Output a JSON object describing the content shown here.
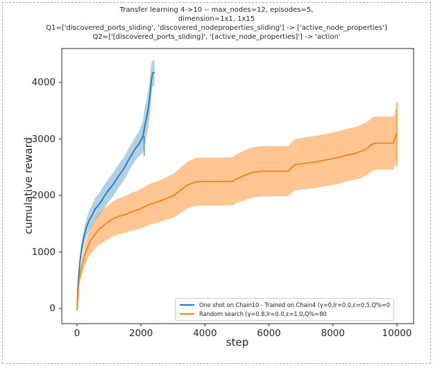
{
  "title": {
    "lines": [
      "Transfer learning 4->10 -- max_nodes=12, episodes=5,",
      "dimension=1x1, 1x15",
      "Q1=['discovered_ports_sliding', 'discovered_nodeproperties_sliding'] -> ['active_node_properties']",
      "Q2=['[discovered_ports_sliding]', '[active_node_properties]'] -> 'action'"
    ]
  },
  "legend": {
    "entries": [
      {
        "label": "One shot on Chain10 - Trained on Chain4 (γ=0,lr=0.0,ε=0.5,Q%=0",
        "color": "#1f77b4"
      },
      {
        "label": "Random search (γ=0.8,lr=0.0,ε=1.0,Q%=80",
        "color": "#ff7f0e"
      }
    ]
  },
  "chart_data": {
    "type": "line",
    "title": "Transfer learning 4->10 -- max_nodes=12, episodes=5, dimension=1x1, 1x15",
    "xlabel": "step",
    "ylabel": "cumulative reward",
    "xlim": [
      -500,
      10500
    ],
    "ylim": [
      -220,
      4600
    ],
    "x_ticks": [
      0,
      2000,
      4000,
      6000,
      8000,
      10000
    ],
    "y_ticks": [
      0,
      1000,
      2000,
      3000,
      4000
    ],
    "grid": false,
    "legend_position": "lower right",
    "series": [
      {
        "name": "One shot on Chain10 - Trained on Chain4",
        "color": "#1f77b4",
        "band_opacity": 0.35,
        "points_format": [
          "step",
          "mean",
          "band_lo",
          "band_hi"
        ],
        "points": [
          [
            0,
            -30,
            -30,
            -30
          ],
          [
            40,
            500,
            430,
            560
          ],
          [
            90,
            820,
            720,
            910
          ],
          [
            130,
            1010,
            890,
            1120
          ],
          [
            175,
            1160,
            1020,
            1290
          ],
          [
            240,
            1320,
            1170,
            1460
          ],
          [
            300,
            1445,
            1285,
            1600
          ],
          [
            390,
            1570,
            1390,
            1745
          ],
          [
            480,
            1655,
            1465,
            1840
          ],
          [
            560,
            1755,
            1555,
            1950
          ],
          [
            650,
            1815,
            1615,
            2010
          ],
          [
            760,
            1900,
            1695,
            2100
          ],
          [
            870,
            2000,
            1790,
            2205
          ],
          [
            980,
            2090,
            1880,
            2295
          ],
          [
            1080,
            2160,
            1950,
            2365
          ],
          [
            1190,
            2250,
            2040,
            2455
          ],
          [
            1300,
            2345,
            2135,
            2550
          ],
          [
            1410,
            2430,
            2225,
            2635
          ],
          [
            1520,
            2530,
            2325,
            2735
          ],
          [
            1620,
            2640,
            2435,
            2845
          ],
          [
            1730,
            2740,
            2535,
            2945
          ],
          [
            1840,
            2840,
            2635,
            3045
          ],
          [
            1950,
            2925,
            2700,
            3150
          ],
          [
            2060,
            3040,
            2760,
            3320
          ],
          [
            2110,
            3210,
            2890,
            3530
          ],
          [
            2170,
            3360,
            3040,
            3680
          ],
          [
            2230,
            3540,
            3220,
            3860
          ],
          [
            2280,
            3790,
            3470,
            4110
          ],
          [
            2320,
            4010,
            3690,
            4330
          ],
          [
            2360,
            4160,
            3930,
            4390
          ],
          [
            2420,
            4185,
            3950,
            4390
          ]
        ]
      },
      {
        "name": "Random search",
        "color": "#ff7f0e",
        "band_opacity": 0.45,
        "points_format": [
          "step",
          "mean",
          "band_lo",
          "band_hi"
        ],
        "points": [
          [
            0,
            -30,
            -30,
            -30
          ],
          [
            65,
            520,
            430,
            610
          ],
          [
            130,
            700,
            560,
            840
          ],
          [
            200,
            850,
            680,
            1020
          ],
          [
            260,
            975,
            780,
            1170
          ],
          [
            350,
            1110,
            890,
            1330
          ],
          [
            430,
            1210,
            970,
            1450
          ],
          [
            540,
            1295,
            1040,
            1550
          ],
          [
            650,
            1385,
            1110,
            1660
          ],
          [
            780,
            1445,
            1160,
            1730
          ],
          [
            910,
            1505,
            1210,
            1800
          ],
          [
            1080,
            1570,
            1260,
            1880
          ],
          [
            1300,
            1630,
            1310,
            1950
          ],
          [
            1520,
            1665,
            1340,
            1990
          ],
          [
            1730,
            1715,
            1380,
            2050
          ],
          [
            1950,
            1755,
            1410,
            2100
          ],
          [
            2160,
            1815,
            1460,
            2170
          ],
          [
            2380,
            1865,
            1500,
            2230
          ],
          [
            2600,
            1900,
            1530,
            2270
          ],
          [
            2810,
            1950,
            1570,
            2330
          ],
          [
            3030,
            2000,
            1610,
            2390
          ],
          [
            3250,
            2100,
            1700,
            2500
          ],
          [
            3460,
            2185,
            1770,
            2600
          ],
          [
            3680,
            2235,
            1810,
            2660
          ],
          [
            3900,
            2245,
            1820,
            2670
          ],
          [
            4400,
            2245,
            1820,
            2670
          ],
          [
            4870,
            2250,
            1825,
            2675
          ],
          [
            4980,
            2295,
            1865,
            2725
          ],
          [
            5200,
            2345,
            1905,
            2785
          ],
          [
            5410,
            2395,
            1950,
            2840
          ],
          [
            5630,
            2420,
            1975,
            2865
          ],
          [
            5840,
            2430,
            1985,
            2875
          ],
          [
            6600,
            2430,
            1985,
            2875
          ],
          [
            6710,
            2495,
            2045,
            2945
          ],
          [
            6820,
            2545,
            2090,
            3000
          ],
          [
            7140,
            2570,
            2110,
            3030
          ],
          [
            7470,
            2595,
            2135,
            3055
          ],
          [
            7790,
            2630,
            2170,
            3090
          ],
          [
            8120,
            2665,
            2200,
            3130
          ],
          [
            8440,
            2715,
            2250,
            3180
          ],
          [
            8660,
            2740,
            2275,
            3205
          ],
          [
            8880,
            2780,
            2310,
            3250
          ],
          [
            9090,
            2840,
            2370,
            3310
          ],
          [
            9200,
            2900,
            2430,
            3370
          ],
          [
            9310,
            2925,
            2455,
            3395
          ],
          [
            9890,
            2925,
            2455,
            3395
          ],
          [
            10000,
            3110,
            2640,
            3580
          ]
        ]
      }
    ],
    "error_whiskers": [
      {
        "series": "Random search",
        "step": 10000,
        "lo": 2520,
        "hi": 3650,
        "color": "#ff7f0e"
      },
      {
        "series": "One shot on Chain10 - Trained on Chain4",
        "step": 2100,
        "lo": 2700,
        "hi": 3050,
        "color": "#1f77b4"
      }
    ]
  }
}
